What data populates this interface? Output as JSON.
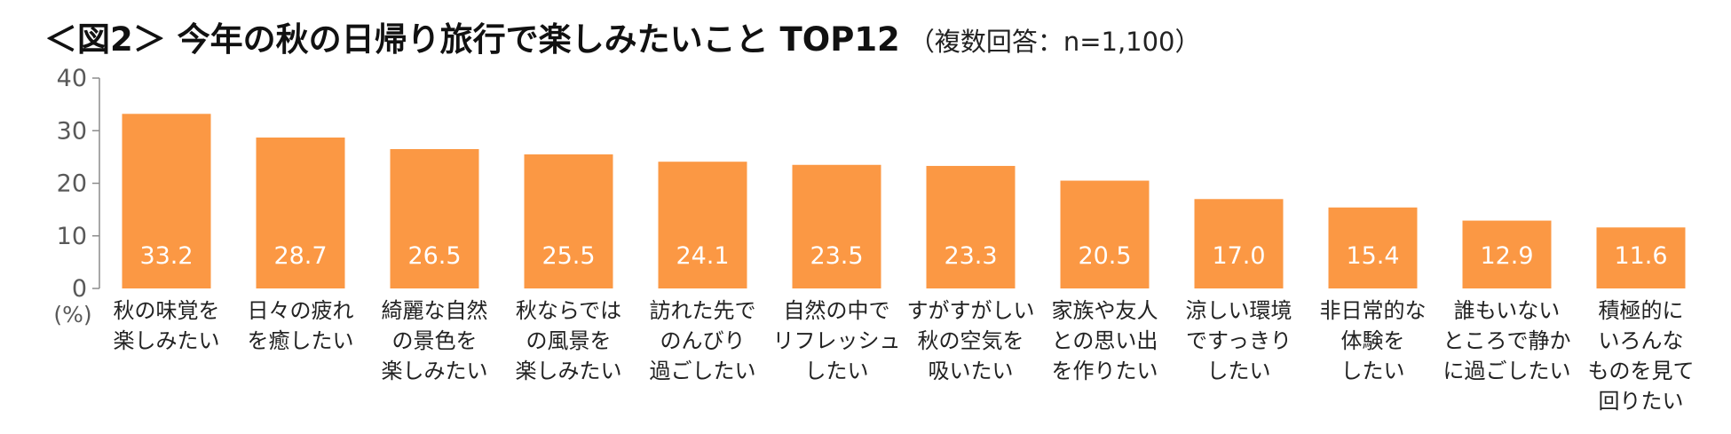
{
  "title": {
    "main": "＜図2＞ 今年の秋の日帰り旅行で楽しみたいこと TOP12",
    "sub": "（複数回答：n=1,100）"
  },
  "colors": {
    "bar": "#FB9844",
    "axis": "#8c8c8c",
    "label": "#ffffff"
  },
  "chart_data": {
    "type": "bar",
    "title": "＜図2＞ 今年の秋の日帰り旅行で楽しみたいこと TOP12（複数回答：n=1,100）",
    "ylabel": "(%)",
    "ylim": [
      0,
      40
    ],
    "yticks": [
      "0",
      "10",
      "20",
      "30",
      "40"
    ],
    "grid": false,
    "categories": [
      [
        "秋の味覚を",
        "楽しみたい"
      ],
      [
        "日々の疲れ",
        "を癒したい"
      ],
      [
        "綺麗な自然",
        "の景色を",
        "楽しみたい"
      ],
      [
        "秋ならでは",
        "の風景を",
        "楽しみたい"
      ],
      [
        "訪れた先で",
        "のんびり",
        "過ごしたい"
      ],
      [
        "自然の中で",
        "リフレッシュ",
        "したい"
      ],
      [
        "すがすがしい",
        "秋の空気を",
        "吸いたい"
      ],
      [
        "家族や友人",
        "との思い出",
        "を作りたい"
      ],
      [
        "涼しい環境",
        "ですっきり",
        "したい"
      ],
      [
        "非日常的な",
        "体験を",
        "したい"
      ],
      [
        "誰もいない",
        "ところで静か",
        "に過ごしたい"
      ],
      [
        "積極的に",
        "いろんな",
        "ものを見て",
        "回りたい"
      ]
    ],
    "values": [
      33.2,
      28.7,
      26.5,
      25.5,
      24.1,
      23.5,
      23.3,
      20.5,
      17.0,
      15.4,
      12.9,
      11.6
    ],
    "value_labels": [
      "33.2",
      "28.7",
      "26.5",
      "25.5",
      "24.1",
      "23.5",
      "23.3",
      "20.5",
      "17.0",
      "15.4",
      "12.9",
      "11.6"
    ]
  }
}
